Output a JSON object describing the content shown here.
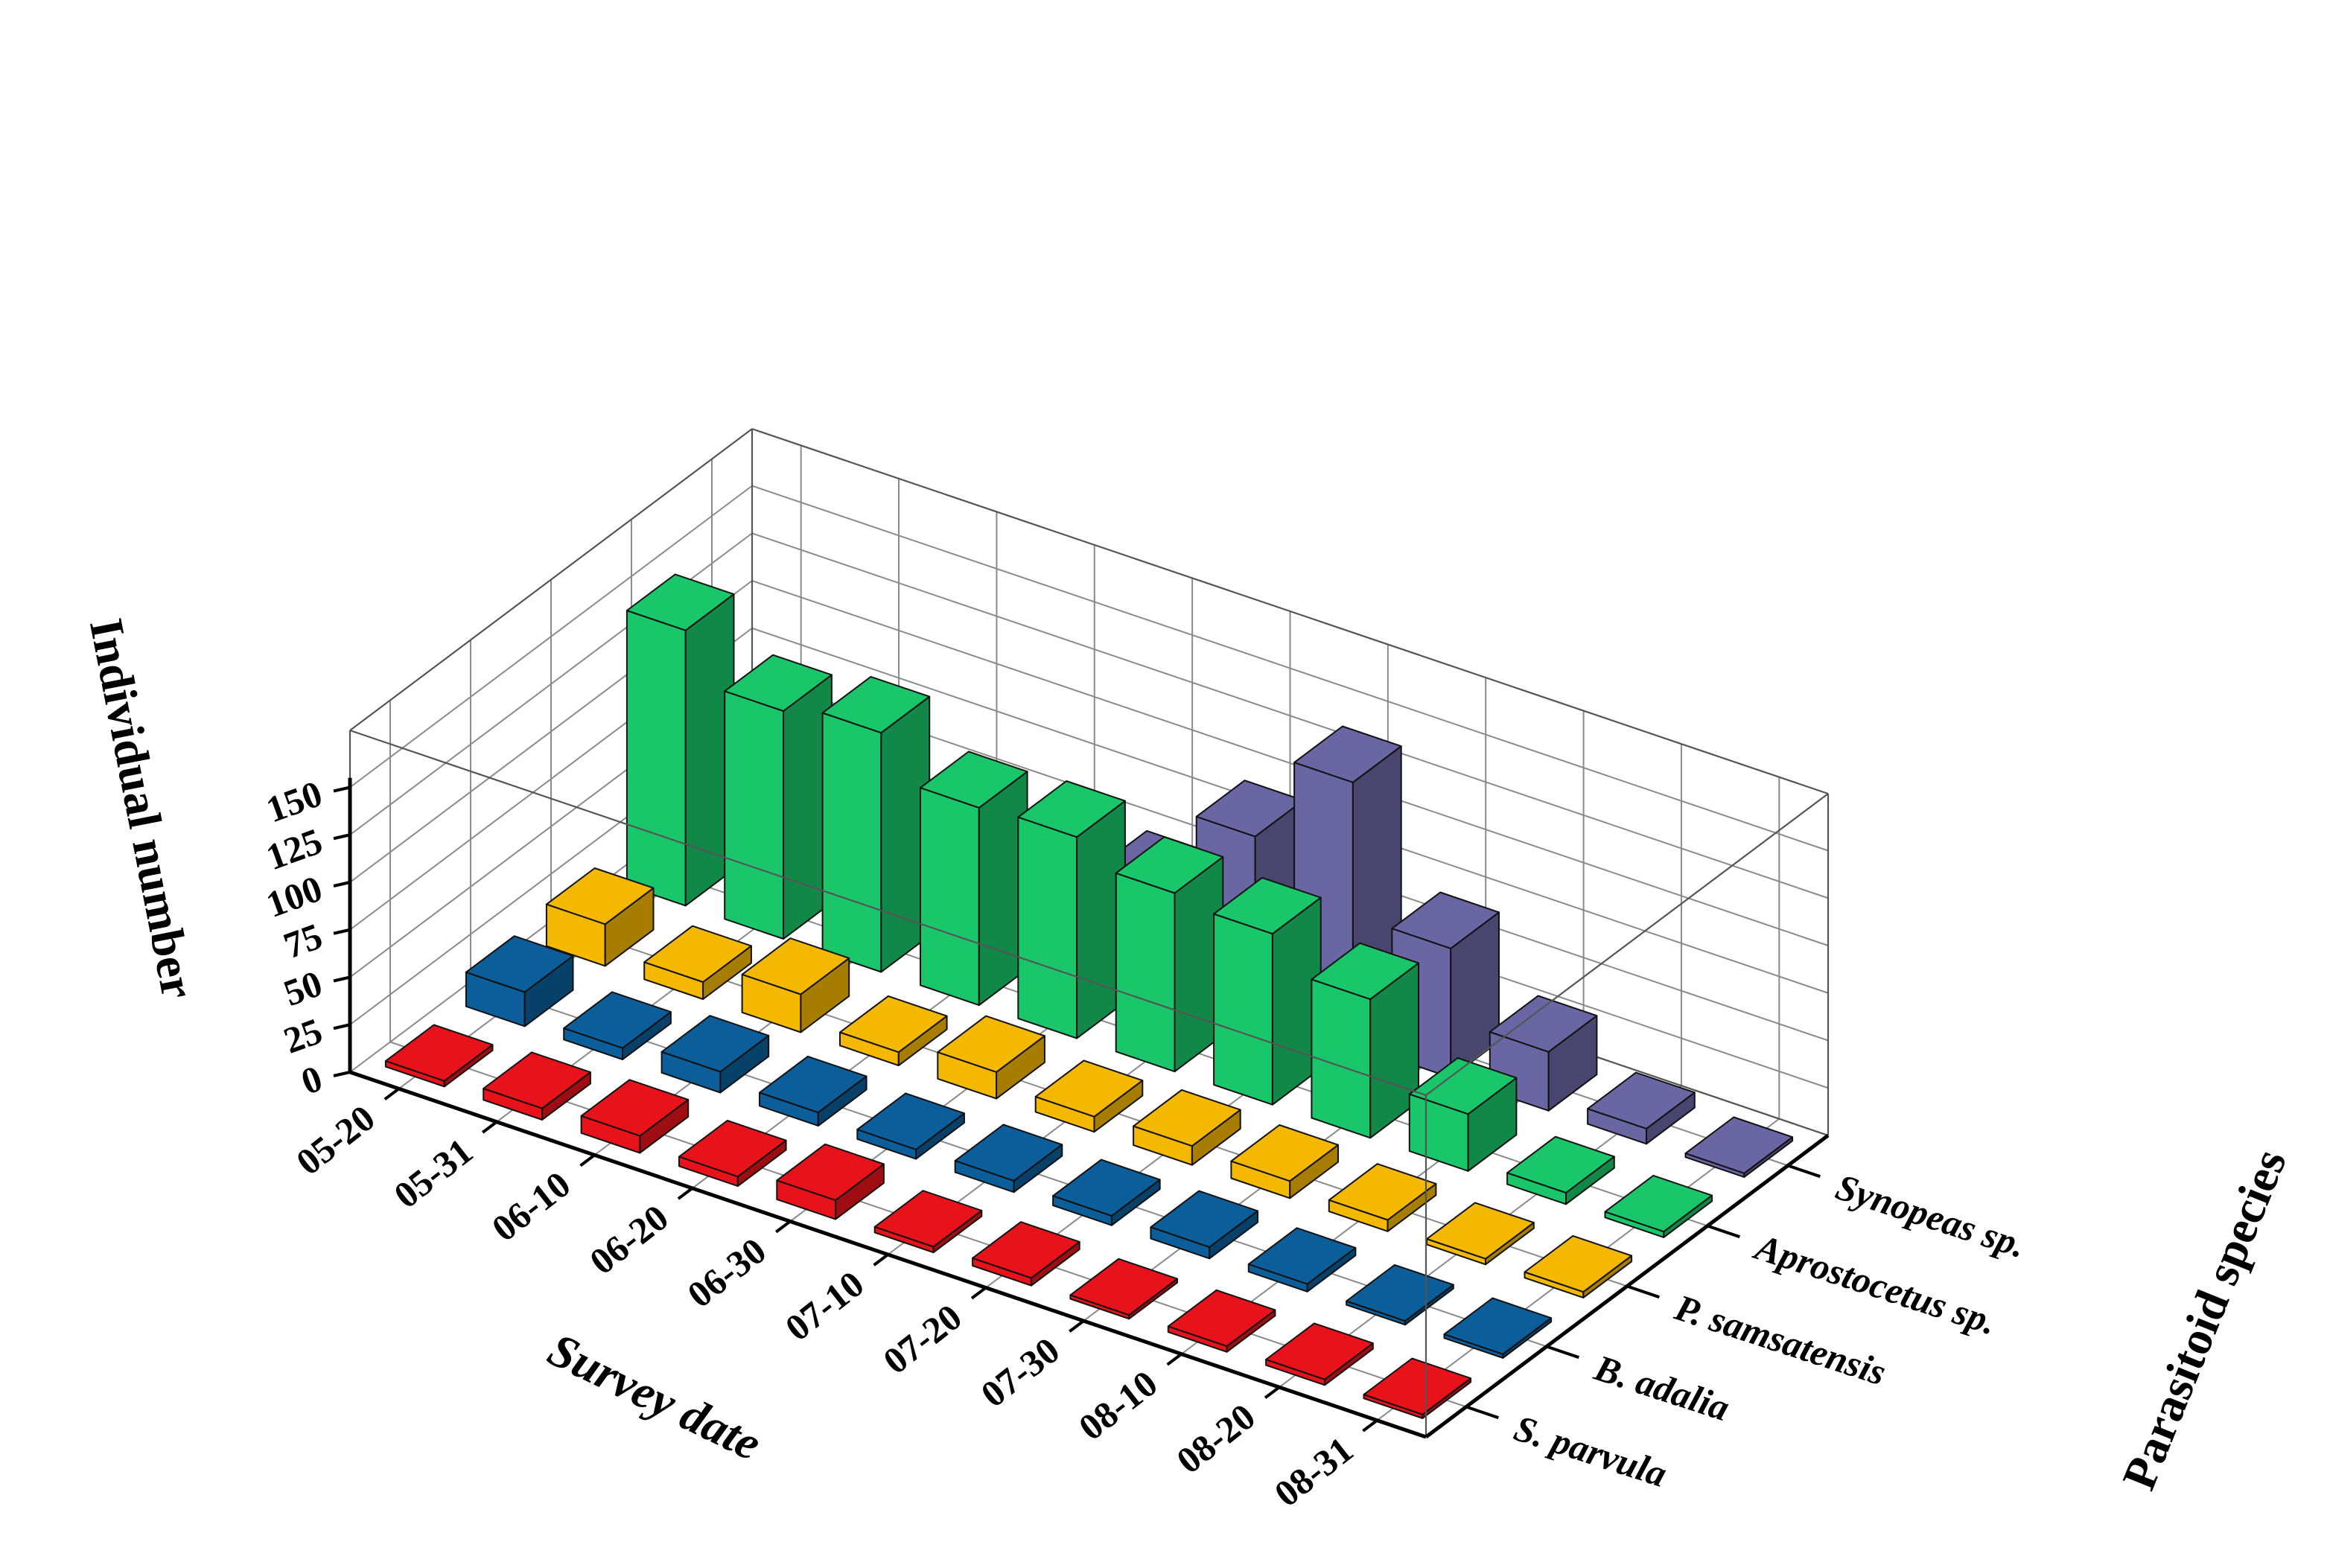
{
  "chart_data": {
    "type": "bar",
    "style": "3d",
    "xlabel": "Survey date",
    "ylabel": "Parasitoid species",
    "zlabel": "Individual number",
    "dates": [
      "05-20",
      "05-31",
      "06-10",
      "06-20",
      "06-30",
      "07-10",
      "07-20",
      "07-30",
      "08-10",
      "08-20",
      "08-31"
    ],
    "zticks": [
      "0",
      "25",
      "50",
      "75",
      "100",
      "125",
      "150"
    ],
    "zlim": [
      0,
      150
    ],
    "grid": true,
    "series": [
      {
        "name": "S. parvula",
        "color": "#e8131a",
        "values": [
          3,
          6,
          9,
          5,
          10,
          3,
          4,
          2,
          3,
          3,
          2
        ]
      },
      {
        "name": "B. adalia",
        "color": "#0b5e9a",
        "values": [
          18,
          6,
          11,
          7,
          5,
          6,
          5,
          6,
          4,
          2,
          2
        ]
      },
      {
        "name": "P. samsatensis",
        "color": "#f5b800",
        "values": [
          22,
          9,
          20,
          7,
          14,
          8,
          10,
          9,
          6,
          3,
          3
        ]
      },
      {
        "name": "Aprostocetus sp.",
        "color": "#19c76a",
        "values": [
          145,
          120,
          126,
          104,
          106,
          94,
          90,
          73,
          30,
          6,
          3
        ]
      },
      {
        "name": "Synopeas sp.",
        "color": "#6a66a3",
        "values": [
          4,
          4,
          18,
          28,
          48,
          92,
          138,
          68,
          31,
          8,
          2
        ]
      }
    ]
  }
}
